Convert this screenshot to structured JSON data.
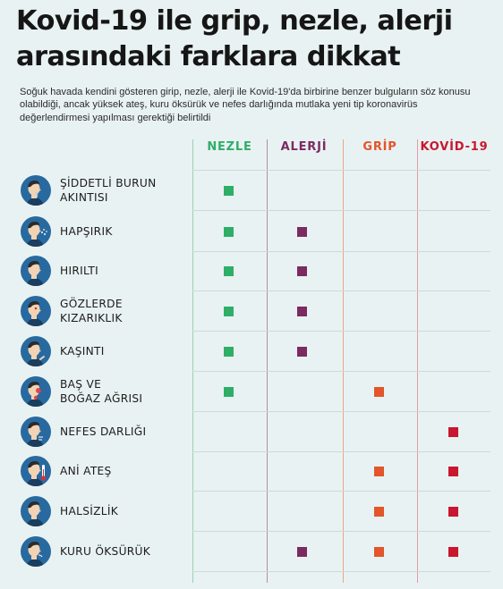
{
  "title_line1": "Kovid-19 ile grip, nezle, alerji",
  "title_line2": "arasındaki farklara dikkat",
  "subtitle": "Soğuk havada kendini gösteren girip, nezle, alerji ile Kovid-19'da birbirine benzer bulguların söz konusu olabildiği, ancak yüksek ateş, kuru öksürük ve nefes darlığında mutlaka yeni tip koronavirüs değerlendirmesi yapılması gerektiği belirtildi",
  "columns": [
    {
      "label": "NEZLE",
      "color": "#2fae68"
    },
    {
      "label": "ALERJİ",
      "color": "#7b2b62"
    },
    {
      "label": "GRİP",
      "color": "#e3552b"
    },
    {
      "label": "KOVİD-19",
      "color": "#c8172f"
    }
  ],
  "rows": [
    {
      "line1": "ŞİDDETLİ BURUN",
      "line2": "AKINTISI",
      "icon": "runny-nose-icon",
      "marks": [
        true,
        false,
        false,
        false
      ]
    },
    {
      "line1": "HAPŞIRIK",
      "line2": "",
      "icon": "sneeze-icon",
      "marks": [
        true,
        true,
        false,
        false
      ]
    },
    {
      "line1": "HIRILTI",
      "line2": "",
      "icon": "wheeze-icon",
      "marks": [
        true,
        true,
        false,
        false
      ]
    },
    {
      "line1": "GÖZLERDE",
      "line2": "KIZARIKLIK",
      "icon": "red-eyes-icon",
      "marks": [
        true,
        true,
        false,
        false
      ]
    },
    {
      "line1": "KAŞINTI",
      "line2": "",
      "icon": "itch-icon",
      "marks": [
        true,
        true,
        false,
        false
      ]
    },
    {
      "line1": "BAŞ VE",
      "line2": "BOĞAZ AĞRISI",
      "icon": "head-throat-pain-icon",
      "marks": [
        true,
        false,
        true,
        false
      ]
    },
    {
      "line1": "NEFES DARLIĞI",
      "line2": "",
      "icon": "shortness-of-breath-icon",
      "marks": [
        false,
        false,
        false,
        true
      ]
    },
    {
      "line1": "ANİ ATEŞ",
      "line2": "",
      "icon": "fever-icon",
      "marks": [
        false,
        false,
        true,
        true
      ]
    },
    {
      "line1": "HALSİZLİK",
      "line2": "",
      "icon": "fatigue-icon",
      "marks": [
        false,
        false,
        true,
        true
      ]
    },
    {
      "line1": "KURU ÖKSÜRÜK",
      "line2": "",
      "icon": "dry-cough-icon",
      "marks": [
        false,
        true,
        true,
        true
      ]
    }
  ],
  "colors": {
    "background": "#e9f2f2",
    "icon_circle": "#286aa0",
    "grid_line": "#cfd8d8"
  }
}
